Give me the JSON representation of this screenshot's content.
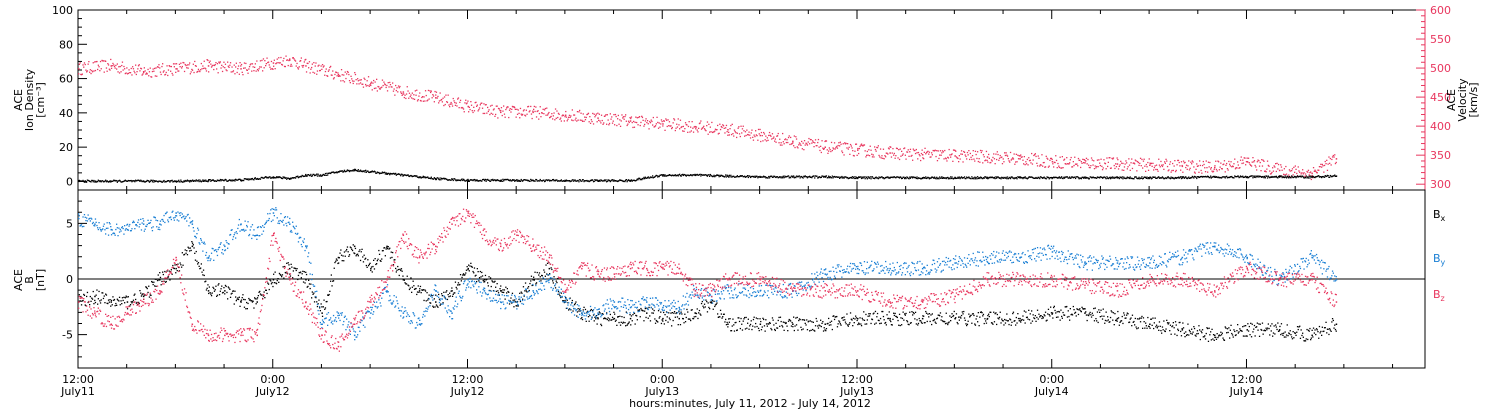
{
  "colors": {
    "density": "#000000",
    "velocity": "#e8365e",
    "bx": "#000000",
    "by": "#1a7fd4",
    "bz": "#e8365e"
  },
  "chart_data": [
    {
      "type": "scatter",
      "panel": "top",
      "ylabel_left": [
        "ACE",
        "Ion Density",
        "[cm⁻³]"
      ],
      "ylabel_right": [
        "ACE",
        "Velocity",
        "[km/s]"
      ],
      "ylim_left": [
        -5,
        100
      ],
      "ylim_right": [
        290,
        600
      ],
      "yticks_left": [
        0,
        20,
        40,
        60,
        80,
        100
      ],
      "yticks_right": [
        300,
        350,
        400,
        450,
        500,
        550,
        600
      ],
      "grid": false,
      "series": [
        {
          "color_key": "density",
          "axis": "left",
          "x": [
            0,
            2,
            4,
            6,
            8,
            10,
            11,
            12,
            13,
            14,
            15,
            16,
            17,
            18,
            19,
            20,
            21,
            22,
            24,
            26,
            28,
            30,
            32,
            34,
            36,
            38,
            40,
            42,
            44,
            46,
            48,
            50,
            52,
            54,
            56,
            58,
            60,
            62,
            64,
            66,
            68,
            70,
            72,
            74,
            76,
            77.5
          ],
          "y": [
            0.5,
            0.5,
            0.5,
            0.5,
            0.8,
            1.2,
            2,
            3,
            2,
            4,
            4,
            6,
            7,
            6,
            5,
            4,
            3,
            2,
            1,
            1,
            1,
            0.8,
            0.8,
            0.8,
            4,
            4,
            3.5,
            3,
            3,
            3,
            2.5,
            2.5,
            2.5,
            2.5,
            2.5,
            2.5,
            2.5,
            2.5,
            2.5,
            2.5,
            2.5,
            3,
            3,
            3,
            3,
            3.5
          ]
        },
        {
          "color_key": "velocity",
          "axis": "right",
          "x": [
            0,
            2,
            4,
            6,
            8,
            10,
            12,
            13,
            14,
            16,
            18,
            20,
            22,
            24,
            26,
            28,
            30,
            32,
            34,
            36,
            38,
            40,
            42,
            44,
            46,
            48,
            50,
            52,
            54,
            56,
            58,
            60,
            62,
            64,
            66,
            68,
            70,
            72,
            74,
            76,
            77.5
          ],
          "y": [
            500,
            505,
            495,
            500,
            505,
            500,
            510,
            515,
            505,
            490,
            475,
            460,
            450,
            435,
            425,
            425,
            420,
            415,
            410,
            405,
            400,
            395,
            385,
            375,
            365,
            360,
            355,
            352,
            350,
            348,
            345,
            340,
            338,
            336,
            334,
            332,
            330,
            340,
            325,
            320,
            345
          ]
        }
      ]
    },
    {
      "type": "scatter",
      "panel": "bottom",
      "ylabel_left": [
        "ACE",
        "B",
        "[nT]"
      ],
      "ylim": [
        -8,
        8
      ],
      "yticks": [
        -5,
        0,
        5
      ],
      "zero_line": true,
      "grid": false,
      "legend": [
        "Bx",
        "By",
        "Bz"
      ],
      "legend_placement": "right",
      "xlabel": "hours:minutes, July 11, 2012 - July 14, 2012",
      "xticks": [
        {
          "hour": 0,
          "time": "12:00",
          "date": "July11"
        },
        {
          "hour": 12,
          "time": "0:00",
          "date": "July12"
        },
        {
          "hour": 24,
          "time": "12:00",
          "date": "July12"
        },
        {
          "hour": 36,
          "time": "0:00",
          "date": "July13"
        },
        {
          "hour": 48,
          "time": "12:00",
          "date": "July13"
        },
        {
          "hour": 60,
          "time": "0:00",
          "date": "July14"
        },
        {
          "hour": 72,
          "time": "12:00",
          "date": "July14"
        }
      ],
      "xlim": [
        0,
        77.5
      ],
      "series": [
        {
          "name": "Bx",
          "color_key": "bx",
          "x": [
            0,
            1,
            2,
            3,
            4,
            5,
            6,
            7,
            8,
            9,
            10,
            11,
            12,
            13,
            14,
            15,
            16,
            17,
            18,
            19,
            20,
            21,
            22,
            23,
            24,
            25,
            26,
            27,
            28,
            29,
            30,
            31,
            32,
            33,
            34,
            35,
            36,
            37,
            38,
            39,
            40,
            42,
            44,
            46,
            48,
            50,
            52,
            54,
            56,
            58,
            60,
            62,
            64,
            66,
            68,
            70,
            72,
            74,
            76,
            77.5
          ],
          "y": [
            -2,
            -1.5,
            -2,
            -2,
            -1.5,
            0,
            1,
            3,
            -1,
            -1,
            -2,
            -2,
            0,
            1,
            0,
            -3,
            2,
            3,
            1,
            3,
            0,
            -1,
            -2,
            -1,
            1,
            0,
            -1,
            -2,
            0,
            1,
            -2,
            -3,
            -3.5,
            -3.5,
            -3.5,
            -3,
            -3.5,
            -3.5,
            -3,
            -2,
            -4,
            -4,
            -4,
            -4,
            -3.5,
            -3.5,
            -3.5,
            -3.5,
            -3.5,
            -3.5,
            -3,
            -3,
            -3.5,
            -4,
            -4.5,
            -5,
            -4.5,
            -4.5,
            -5,
            -4
          ]
        },
        {
          "name": "By",
          "color_key": "by",
          "x": [
            0,
            1,
            2,
            3,
            4,
            5,
            6,
            7,
            8,
            9,
            10,
            11,
            12,
            13,
            14,
            15,
            16,
            17,
            18,
            19,
            20,
            21,
            22,
            23,
            24,
            25,
            26,
            27,
            28,
            29,
            30,
            31,
            32,
            33,
            34,
            35,
            36,
            37,
            38,
            39,
            40,
            42,
            44,
            46,
            48,
            50,
            52,
            54,
            56,
            58,
            60,
            62,
            64,
            66,
            68,
            70,
            72,
            74,
            76,
            77.5
          ],
          "y": [
            5.5,
            5,
            4.5,
            4.5,
            5,
            5,
            6,
            5,
            2,
            3,
            5,
            4,
            6,
            5,
            3,
            -4,
            -3,
            -5,
            -3,
            -1,
            -3,
            -4,
            -1,
            -3,
            0,
            -1,
            -2,
            -2,
            -1,
            0,
            -2,
            -3,
            -3,
            -2,
            -2.5,
            -2,
            -2.5,
            -2.5,
            -1,
            -1.5,
            -1,
            -1,
            -1,
            0.5,
            1,
            1,
            1,
            1.5,
            2,
            2,
            2.5,
            1.5,
            1.5,
            1.5,
            2,
            3,
            2,
            0,
            2,
            0
          ]
        },
        {
          "name": "Bz",
          "color_key": "bz",
          "x": [
            0,
            1,
            2,
            3,
            4,
            5,
            6,
            7,
            8,
            9,
            10,
            11,
            12,
            13,
            14,
            15,
            16,
            17,
            18,
            19,
            20,
            21,
            22,
            23,
            24,
            25,
            26,
            27,
            28,
            29,
            30,
            31,
            32,
            33,
            34,
            35,
            36,
            37,
            38,
            39,
            40,
            42,
            44,
            46,
            48,
            50,
            52,
            54,
            56,
            58,
            60,
            62,
            64,
            66,
            68,
            70,
            72,
            74,
            76,
            77.5
          ],
          "y": [
            -2,
            -3,
            -4,
            -3,
            -2,
            -1,
            2,
            -4,
            -5,
            -5,
            -5,
            -5,
            4,
            0,
            -2,
            -5,
            -6,
            -4,
            -2,
            0,
            4,
            2,
            3,
            5,
            6,
            4,
            3,
            4,
            3,
            2,
            -1,
            1,
            0.5,
            0.5,
            1,
            1,
            1,
            1,
            -1,
            -1,
            0,
            0,
            -1,
            -1,
            -1,
            -2,
            -2,
            -1.5,
            0,
            0,
            0,
            -0.5,
            -1,
            0,
            0,
            -1,
            1,
            0,
            0,
            -2
          ]
        }
      ]
    }
  ]
}
